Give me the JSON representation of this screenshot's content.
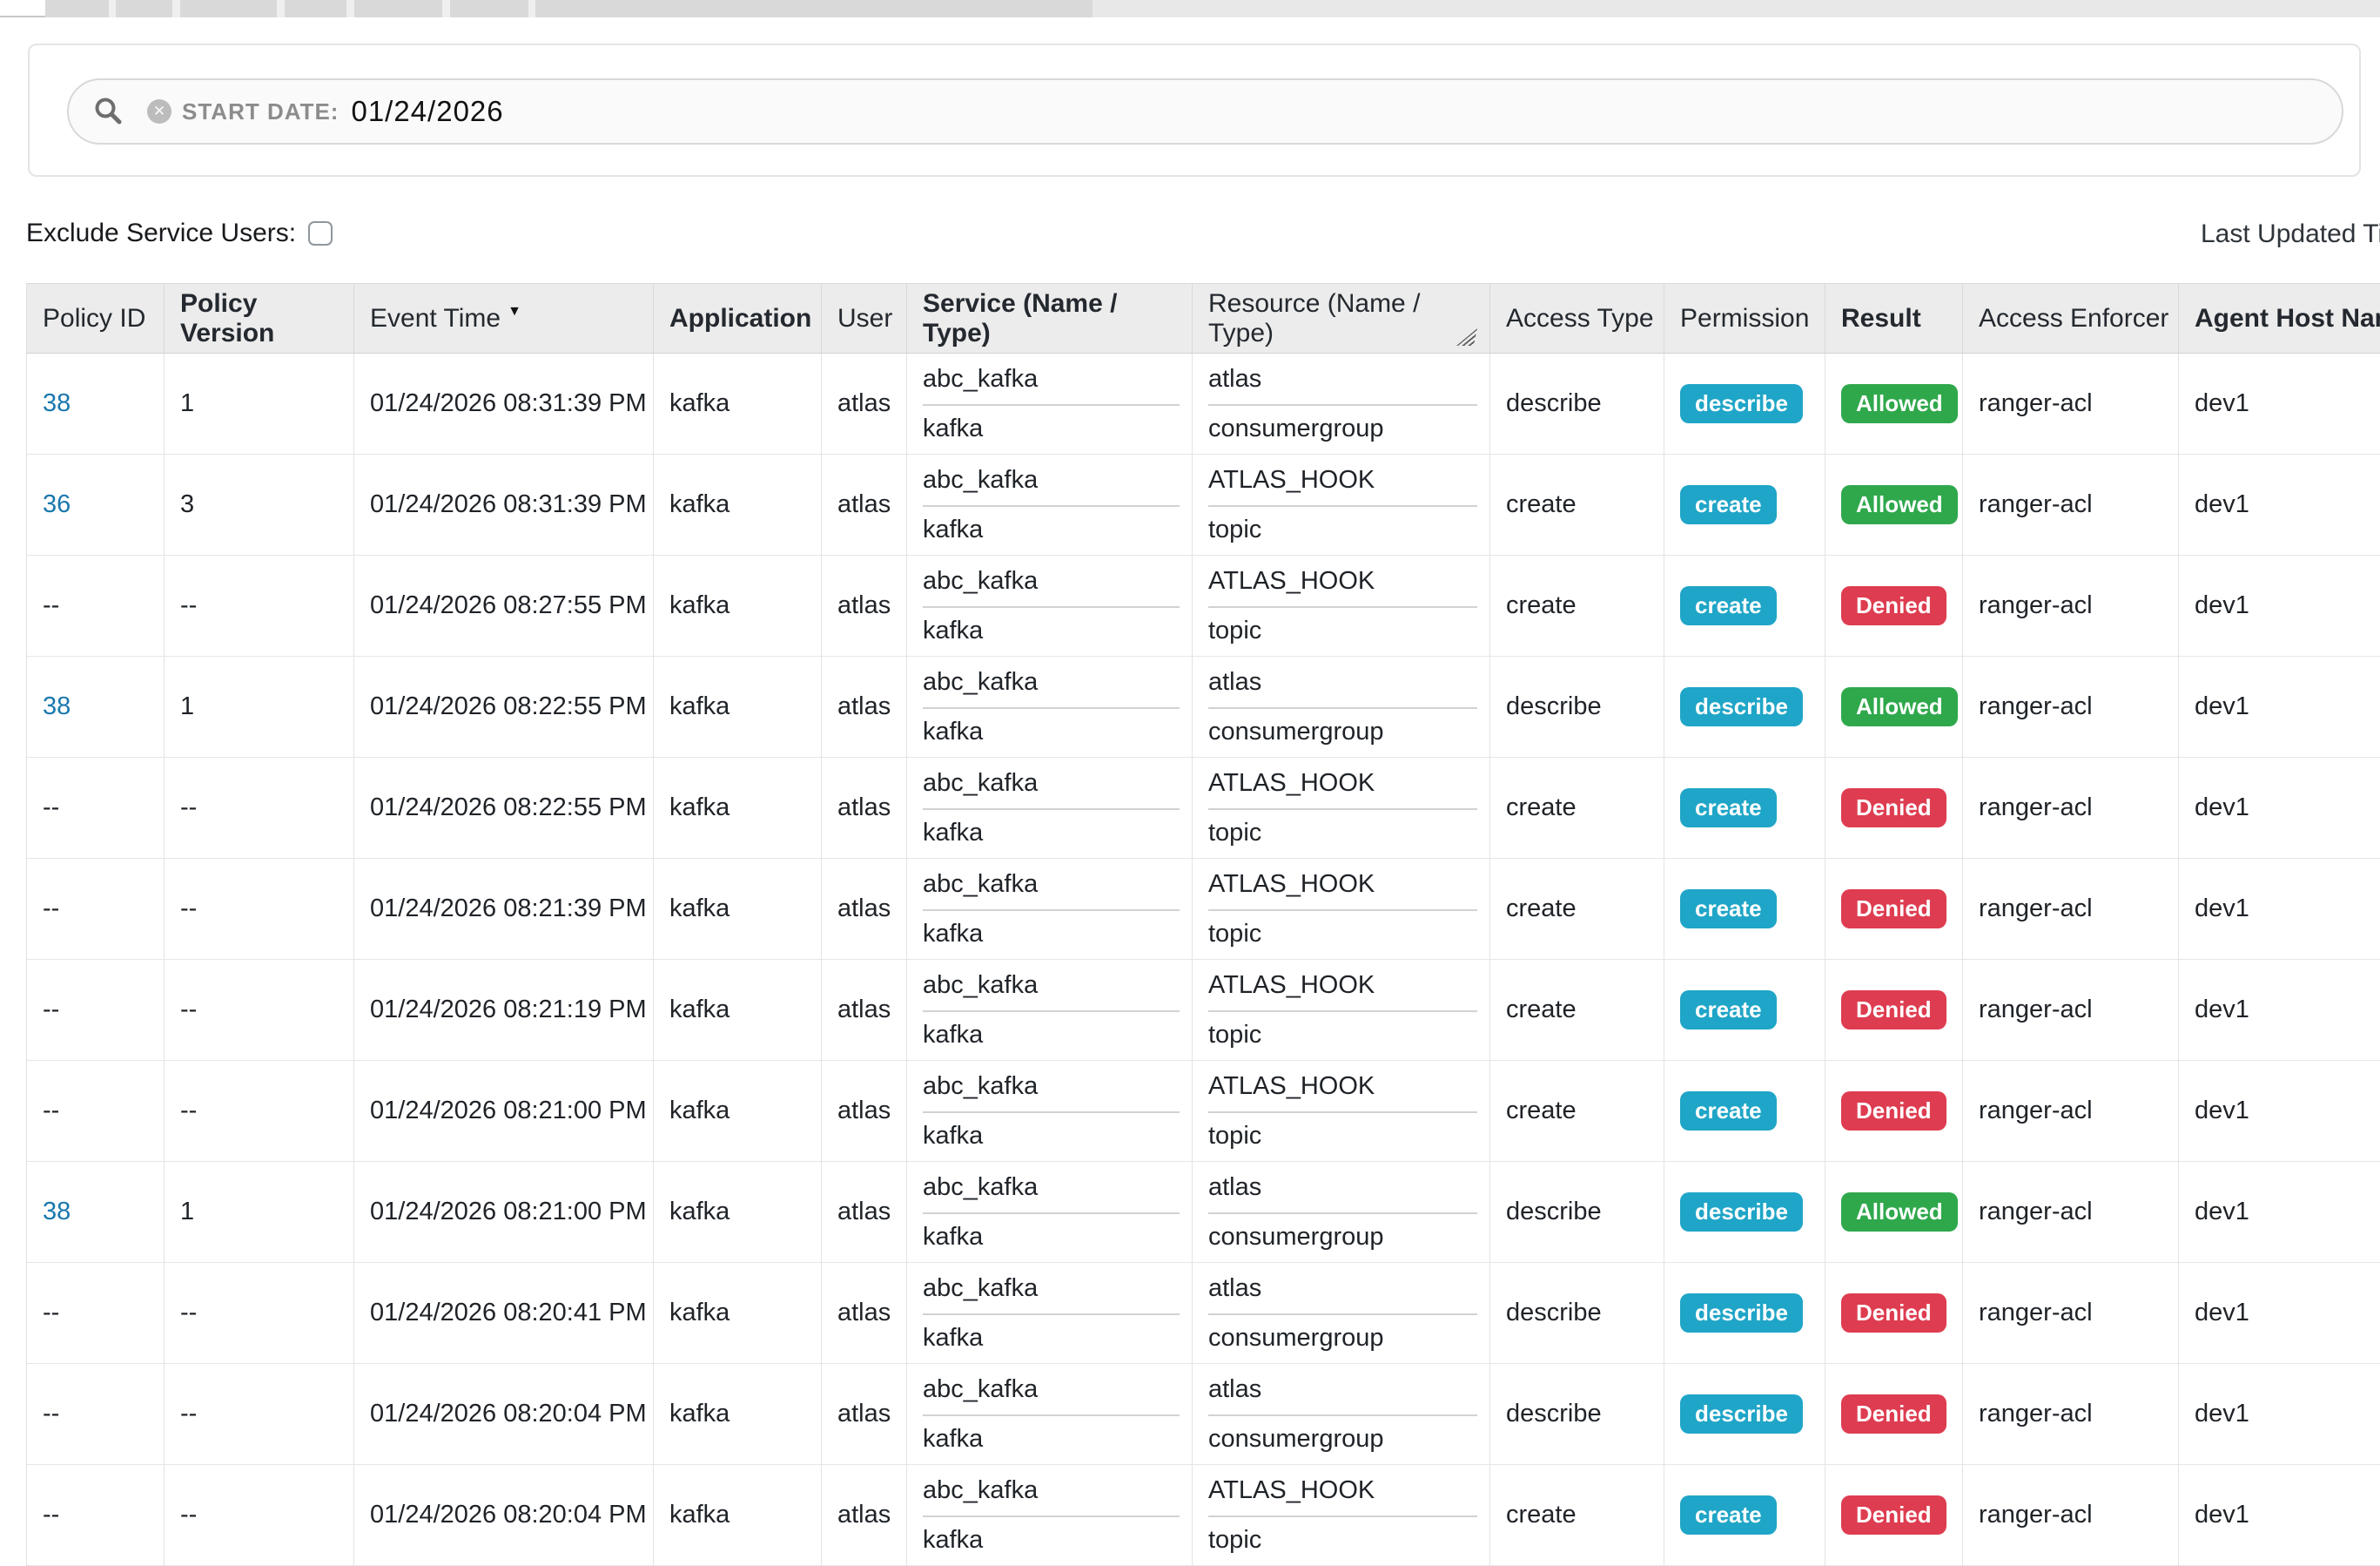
{
  "search": {
    "filter_label": "START DATE:",
    "filter_value": "01/24/2026"
  },
  "controls": {
    "exclude_label": "Exclude Service Users:",
    "exclude_checked": false,
    "last_updated_label": "Last Updated Time"
  },
  "colors": {
    "permission_chip": "#1fa5c7",
    "allowed_chip": "#2fa84c",
    "denied_chip": "#de3c50",
    "policy_link": "#1a78ae"
  },
  "table": {
    "columns": [
      {
        "key": "policy_id",
        "label": "Policy ID",
        "bold": false
      },
      {
        "key": "policy_version",
        "label": "Policy Version",
        "bold": true
      },
      {
        "key": "event_time",
        "label": "Event Time",
        "bold": false,
        "sort": "desc"
      },
      {
        "key": "application",
        "label": "Application",
        "bold": true
      },
      {
        "key": "user",
        "label": "User",
        "bold": false
      },
      {
        "key": "service",
        "label": "Service (Name / Type)",
        "bold": true
      },
      {
        "key": "resource",
        "label": "Resource (Name / Type)",
        "bold": false,
        "grip": true
      },
      {
        "key": "access_type",
        "label": "Access Type",
        "bold": false
      },
      {
        "key": "permission",
        "label": "Permission",
        "bold": false
      },
      {
        "key": "result",
        "label": "Result",
        "bold": true
      },
      {
        "key": "access_enforcer",
        "label": "Access Enforcer",
        "bold": false
      },
      {
        "key": "agent_host",
        "label": "Agent Host Name",
        "bold": true
      }
    ],
    "rows": [
      {
        "policy_id": "38",
        "policy_link": true,
        "policy_version": "1",
        "event_time": "01/24/2026 08:31:39 PM",
        "application": "kafka",
        "user": "atlas",
        "service_name": "abc_kafka",
        "service_type": "kafka",
        "resource_name": "atlas",
        "resource_type": "consumergroup",
        "access_type": "describe",
        "permission": "describe",
        "result": "Allowed",
        "access_enforcer": "ranger-acl",
        "agent_host": "dev1"
      },
      {
        "policy_id": "36",
        "policy_link": true,
        "policy_version": "3",
        "event_time": "01/24/2026 08:31:39 PM",
        "application": "kafka",
        "user": "atlas",
        "service_name": "abc_kafka",
        "service_type": "kafka",
        "resource_name": "ATLAS_HOOK",
        "resource_type": "topic",
        "access_type": "create",
        "permission": "create",
        "result": "Allowed",
        "access_enforcer": "ranger-acl",
        "agent_host": "dev1"
      },
      {
        "policy_id": "--",
        "policy_link": false,
        "policy_version": "--",
        "event_time": "01/24/2026 08:27:55 PM",
        "application": "kafka",
        "user": "atlas",
        "service_name": "abc_kafka",
        "service_type": "kafka",
        "resource_name": "ATLAS_HOOK",
        "resource_type": "topic",
        "access_type": "create",
        "permission": "create",
        "result": "Denied",
        "access_enforcer": "ranger-acl",
        "agent_host": "dev1"
      },
      {
        "policy_id": "38",
        "policy_link": true,
        "policy_version": "1",
        "event_time": "01/24/2026 08:22:55 PM",
        "application": "kafka",
        "user": "atlas",
        "service_name": "abc_kafka",
        "service_type": "kafka",
        "resource_name": "atlas",
        "resource_type": "consumergroup",
        "access_type": "describe",
        "permission": "describe",
        "result": "Allowed",
        "access_enforcer": "ranger-acl",
        "agent_host": "dev1"
      },
      {
        "policy_id": "--",
        "policy_link": false,
        "policy_version": "--",
        "event_time": "01/24/2026 08:22:55 PM",
        "application": "kafka",
        "user": "atlas",
        "service_name": "abc_kafka",
        "service_type": "kafka",
        "resource_name": "ATLAS_HOOK",
        "resource_type": "topic",
        "access_type": "create",
        "permission": "create",
        "result": "Denied",
        "access_enforcer": "ranger-acl",
        "agent_host": "dev1"
      },
      {
        "policy_id": "--",
        "policy_link": false,
        "policy_version": "--",
        "event_time": "01/24/2026 08:21:39 PM",
        "application": "kafka",
        "user": "atlas",
        "service_name": "abc_kafka",
        "service_type": "kafka",
        "resource_name": "ATLAS_HOOK",
        "resource_type": "topic",
        "access_type": "create",
        "permission": "create",
        "result": "Denied",
        "access_enforcer": "ranger-acl",
        "agent_host": "dev1"
      },
      {
        "policy_id": "--",
        "policy_link": false,
        "policy_version": "--",
        "event_time": "01/24/2026 08:21:19 PM",
        "application": "kafka",
        "user": "atlas",
        "service_name": "abc_kafka",
        "service_type": "kafka",
        "resource_name": "ATLAS_HOOK",
        "resource_type": "topic",
        "access_type": "create",
        "permission": "create",
        "result": "Denied",
        "access_enforcer": "ranger-acl",
        "agent_host": "dev1"
      },
      {
        "policy_id": "--",
        "policy_link": false,
        "policy_version": "--",
        "event_time": "01/24/2026 08:21:00 PM",
        "application": "kafka",
        "user": "atlas",
        "service_name": "abc_kafka",
        "service_type": "kafka",
        "resource_name": "ATLAS_HOOK",
        "resource_type": "topic",
        "access_type": "create",
        "permission": "create",
        "result": "Denied",
        "access_enforcer": "ranger-acl",
        "agent_host": "dev1"
      },
      {
        "policy_id": "38",
        "policy_link": true,
        "policy_version": "1",
        "event_time": "01/24/2026 08:21:00 PM",
        "application": "kafka",
        "user": "atlas",
        "service_name": "abc_kafka",
        "service_type": "kafka",
        "resource_name": "atlas",
        "resource_type": "consumergroup",
        "access_type": "describe",
        "permission": "describe",
        "result": "Allowed",
        "access_enforcer": "ranger-acl",
        "agent_host": "dev1"
      },
      {
        "policy_id": "--",
        "policy_link": false,
        "policy_version": "--",
        "event_time": "01/24/2026 08:20:41 PM",
        "application": "kafka",
        "user": "atlas",
        "service_name": "abc_kafka",
        "service_type": "kafka",
        "resource_name": "atlas",
        "resource_type": "consumergroup",
        "access_type": "describe",
        "permission": "describe",
        "result": "Denied",
        "access_enforcer": "ranger-acl",
        "agent_host": "dev1"
      },
      {
        "policy_id": "--",
        "policy_link": false,
        "policy_version": "--",
        "event_time": "01/24/2026 08:20:04 PM",
        "application": "kafka",
        "user": "atlas",
        "service_name": "abc_kafka",
        "service_type": "kafka",
        "resource_name": "atlas",
        "resource_type": "consumergroup",
        "access_type": "describe",
        "permission": "describe",
        "result": "Denied",
        "access_enforcer": "ranger-acl",
        "agent_host": "dev1"
      },
      {
        "policy_id": "--",
        "policy_link": false,
        "policy_version": "--",
        "event_time": "01/24/2026 08:20:04 PM",
        "application": "kafka",
        "user": "atlas",
        "service_name": "abc_kafka",
        "service_type": "kafka",
        "resource_name": "ATLAS_HOOK",
        "resource_type": "topic",
        "access_type": "create",
        "permission": "create",
        "result": "Denied",
        "access_enforcer": "ranger-acl",
        "agent_host": "dev1"
      }
    ]
  }
}
